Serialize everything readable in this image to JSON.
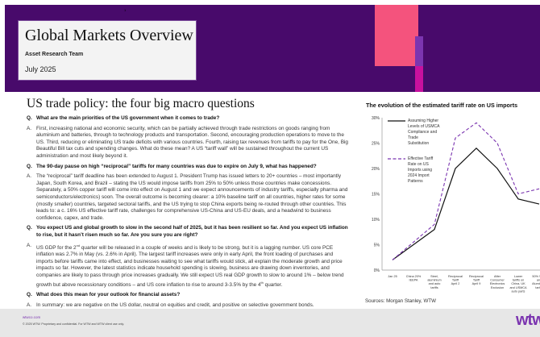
{
  "header": {
    "page_number": "1",
    "title": "Global Markets Overview",
    "team": "Asset Research Team",
    "date": "July 2025"
  },
  "main": {
    "heading": "US trade policy: the four big macro questions",
    "qa": [
      {
        "q_prefix": "Q.",
        "q": "What are the main priorities of the US government when it comes to trade?",
        "a_prefix": "A.",
        "a": "First, increasing national and economic security, which can be partially achieved through trade restrictions on goods ranging from aluminium and batteries, through to technology products and transportation. Second, encouraging production operations to move to the US. Third, reducing or eliminating US trade deficits with various countries. Fourth, raising tax revenues from tariffs to pay for the One, Big Beautiful Bill tax cuts and spending changes. What do these mean? A US “tariff wall” will be sustained throughout the current US administration and most likely beyond it."
      },
      {
        "q_prefix": "Q.",
        "q": "The 90-day pause on high “reciprocal” tariffs for many countries was due to expire on July 9, what has happened?",
        "a_prefix": "A.",
        "a": "The “reciprocal” tariff deadline has been extended to August 1. President Trump has issued letters to 20+ countries – most importantly Japan, South Korea, and Brazil – stating the US would impose tariffs from 25% to 50% unless those countries make concessions. Separately, a 50% copper tariff will come into effect on August 1 and we expect announcements of industry tariffs, especially pharma and semiconductors/electronics) soon. The overall outcome is becoming clearer: a 10% baseline tariff on all countries, higher rates for some (mostly smaller) countries, targeted sectoral tariffs, and the US trying to stop China exports being re-routed through other countries. This leads to: a c. 16% US effective tariff rate, challenges for comprehensive US-China and US-EU deals, and a headwind to business confidence, capex, and trade."
      },
      {
        "q_prefix": "Q.",
        "q": "You expect US and global growth to slow in the second half of 2025, but it has been resilient so far. And you expect US inflation to rise, but it hasn’t risen much so far. Are you sure you are right?",
        "a_prefix": "A.",
        "a1": "US GDP for the 2",
        "a1_sup": "nd",
        "a2": " quarter will be released in a couple of weeks and is likely to be strong, but it is a lagging number. US core PCE inflation was 2.7% in May (vs. 2.6% in April). The largest tariff increases were only in early April, the front loading of purchases and imports before tariffs came into effect, and businesses waiting to see what tariffs would stick, all explain the moderate growth and price impacts so far. However, the latest statistics indicate household spending is slowing, business are drawing down inventories, and companies are likely to pass through price increases gradually. We still expect US real GDP growth to slow to around 1% – below trend growth but above recessionary conditions – and US core inflation to rise to around 3-3.5% by the 4",
        "a2_sup": "th",
        "a3": " quarter."
      },
      {
        "q_prefix": "Q.",
        "q": "What does this mean for your outlook for financial assets?",
        "a_prefix": "A.",
        "a": "In summary: we are negative on the US dollar, neutral on equities and credit, and positive on selective government bonds."
      }
    ]
  },
  "chart_data": {
    "type": "line",
    "title": "The evolution of the estimated tariff rate on US imports",
    "categories": [
      "Jan 25",
      "China 20% IEEPA",
      "Steel, aluminium and auto tariffs",
      "Reciprocal Tariff April 2",
      "Reciprocal Tariff April 9",
      "After Consumer Electronics Exclusion",
      "Lower tariffs on China, UK and USMCA auto parts",
      "50% Steel and Aluminium tariffs"
    ],
    "yticks": [
      "0%",
      "5%",
      "10%",
      "15%",
      "20%",
      "25%",
      "30%"
    ],
    "ylim": [
      0,
      30
    ],
    "series": [
      {
        "name": "Assuming Higher Levels of USMCA Compliance and Trade Substitution",
        "color": "#111111",
        "style": "solid",
        "values": [
          2,
          5,
          8,
          20,
          24,
          20,
          14,
          13
        ]
      },
      {
        "name": "Effective Tariff Rate on US Imports using 2024 Import Patterns",
        "color": "#7b35b0",
        "style": "dashed",
        "values": [
          2,
          5.5,
          9,
          26,
          29,
          25,
          15,
          16
        ]
      }
    ],
    "legend": "top-left",
    "source": "Sources: Morgan Stanley, WTW"
  },
  "footer": {
    "url": "wtwco.com",
    "copyright": "© 2025 WTW. Proprietary and confidential. For WTW and WTW client use only.",
    "logo": "wtw"
  }
}
